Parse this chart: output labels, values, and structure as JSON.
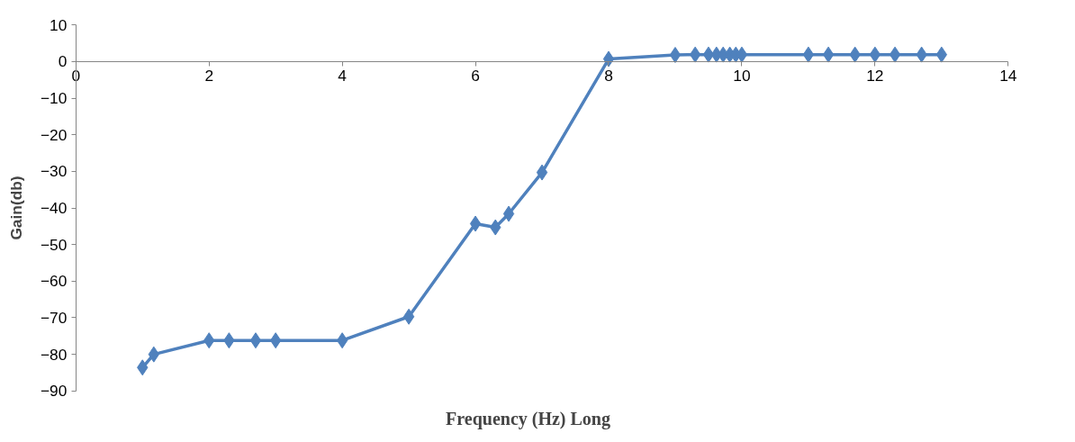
{
  "chart_data": {
    "type": "line",
    "xlabel": "Frequency (Hz) Long",
    "ylabel": "Gain(db)",
    "xlim": [
      0,
      14
    ],
    "xticks": [
      0,
      2,
      4,
      6,
      8,
      10,
      12,
      14
    ],
    "ylim": [
      -90,
      10
    ],
    "yticks": [
      10,
      0,
      -10,
      -20,
      -30,
      -40,
      -50,
      -60,
      -70,
      -80,
      -90
    ],
    "grid": false,
    "marker": "diamond",
    "line_style": "solid",
    "series": [
      {
        "color": "#4f81bd",
        "x": [
          1,
          1.17,
          2,
          2.3,
          2.7,
          3,
          4,
          5,
          6,
          6.3,
          6.5,
          7,
          8,
          9,
          9.3,
          9.5,
          9.62,
          9.72,
          9.82,
          9.91,
          10,
          11,
          11.3,
          11.7,
          12,
          12.3,
          12.7,
          13
        ],
        "values": [
          -83.6,
          -80,
          -76.2,
          -76.2,
          -76.2,
          -76.2,
          -76.2,
          -69.7,
          -44.3,
          -45.3,
          -41.6,
          -30.3,
          0.7,
          1.8,
          1.9,
          1.9,
          1.9,
          1.9,
          1.9,
          1.9,
          1.9,
          1.9,
          1.9,
          1.9,
          1.9,
          1.9,
          1.9,
          1.9
        ]
      }
    ]
  }
}
